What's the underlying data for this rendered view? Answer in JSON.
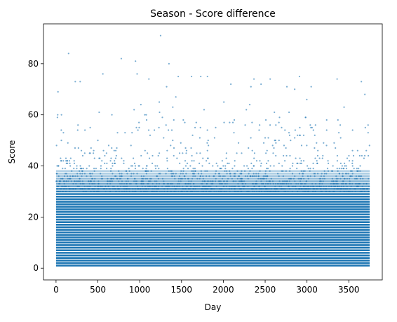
{
  "chart_data": {
    "type": "scatter",
    "title": "Season - Score difference",
    "xlabel": "Day",
    "ylabel": "Score",
    "xlim": [
      -150,
      3900
    ],
    "ylim": [
      -4.6,
      95.6
    ],
    "xticks": [
      0,
      500,
      1000,
      1500,
      2000,
      2500,
      3000,
      3500
    ],
    "yticks": [
      0,
      20,
      40,
      60,
      80
    ],
    "grid": false,
    "legend": "none",
    "color": "#1f77b4",
    "marker_alpha": 0.6,
    "x_range_of_data": [
      0,
      3750
    ],
    "score_distribution": {
      "dense_band_max": 38,
      "moderate_band_max": 53,
      "sparse_band_max": 76
    },
    "notable_points": [
      {
        "x": 20,
        "y": 60
      },
      {
        "x": 150,
        "y": 84
      },
      {
        "x": 230,
        "y": 73
      },
      {
        "x": 560,
        "y": 76
      },
      {
        "x": 780,
        "y": 82
      },
      {
        "x": 950,
        "y": 81
      },
      {
        "x": 1110,
        "y": 74
      },
      {
        "x": 1250,
        "y": 91
      },
      {
        "x": 1350,
        "y": 80
      },
      {
        "x": 1620,
        "y": 75
      },
      {
        "x": 1730,
        "y": 75
      },
      {
        "x": 1810,
        "y": 75
      },
      {
        "x": 2090,
        "y": 72
      },
      {
        "x": 2330,
        "y": 71
      },
      {
        "x": 2560,
        "y": 74
      },
      {
        "x": 2760,
        "y": 71
      },
      {
        "x": 2910,
        "y": 75
      },
      {
        "x": 3050,
        "y": 71
      },
      {
        "x": 3360,
        "y": 74
      },
      {
        "x": 3650,
        "y": 73
      }
    ]
  }
}
